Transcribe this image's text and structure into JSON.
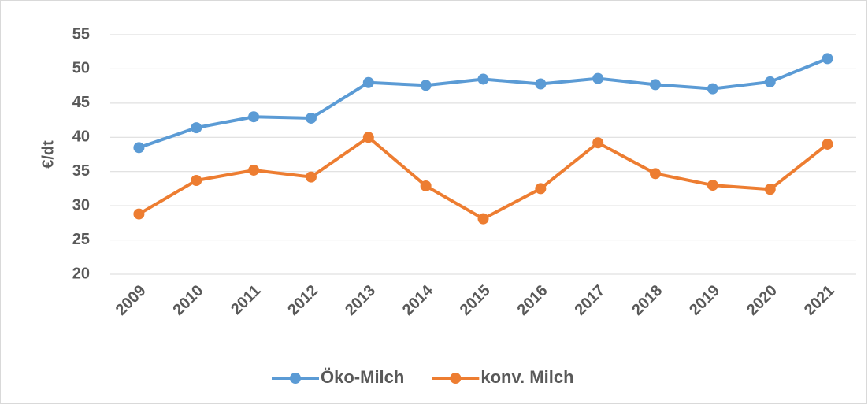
{
  "chart_data": {
    "type": "line",
    "y_label": "€/dt",
    "categories": [
      "2009",
      "2010",
      "2011",
      "2012",
      "2013",
      "2014",
      "2015",
      "2016",
      "2017",
      "2018",
      "2019",
      "2020",
      "2021"
    ],
    "series": [
      {
        "name": "Öko-Milch",
        "color": "#5b9bd5",
        "values": [
          38.5,
          41.4,
          43.0,
          42.8,
          48.0,
          47.6,
          48.5,
          47.8,
          48.6,
          47.7,
          47.1,
          48.1,
          51.5
        ]
      },
      {
        "name": "konv. Milch",
        "color": "#ed7d31",
        "values": [
          28.8,
          33.7,
          35.2,
          34.2,
          40.0,
          32.9,
          28.1,
          32.5,
          39.2,
          34.7,
          33.0,
          32.4,
          39.0
        ]
      }
    ],
    "ylim": [
      20,
      55
    ],
    "yticks": [
      20,
      25,
      30,
      35,
      40,
      45,
      50,
      55
    ],
    "grid": true,
    "legend": "bottom"
  }
}
